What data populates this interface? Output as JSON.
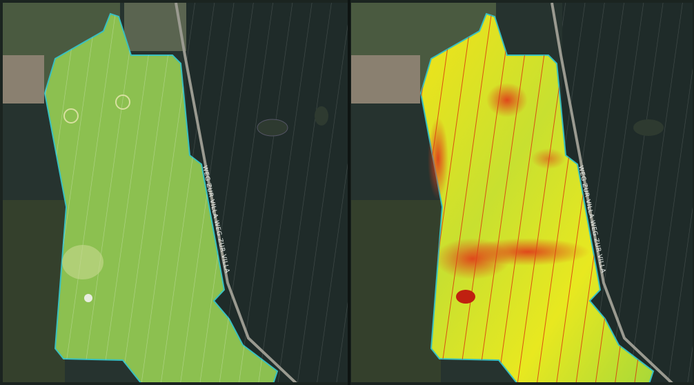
{
  "panels": [
    {
      "road_label": "WEG ZUR VILLA WEG ZUR VILLA"
    },
    {
      "road_label": "WEG ZUR VILLA WEG ZUR VILLA"
    }
  ]
}
